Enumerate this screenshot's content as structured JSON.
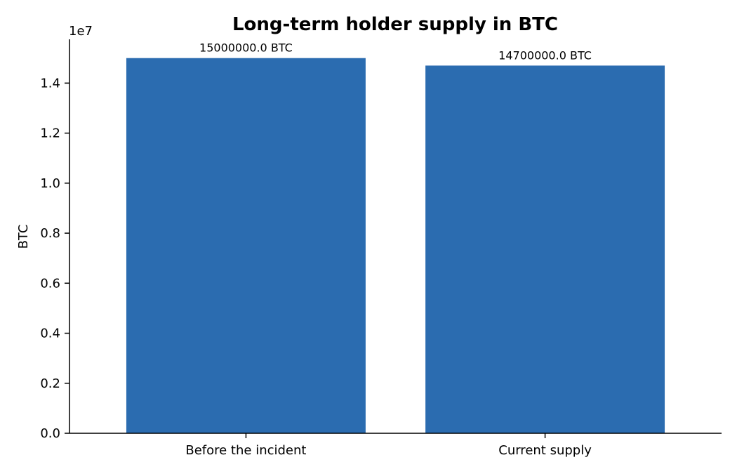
{
  "chart_data": {
    "type": "bar",
    "title": "Long-term holder supply in BTC",
    "xlabel": "",
    "ylabel": "BTC",
    "categories": [
      "Before the incident",
      "Current supply"
    ],
    "values": [
      15000000,
      14700000
    ],
    "data_labels": [
      "15000000.0 BTC",
      "14700000.0 BTC"
    ],
    "ylim": [
      0,
      15750000
    ],
    "y_ticks": [
      0,
      2000000,
      4000000,
      6000000,
      8000000,
      10000000,
      12000000,
      14000000
    ],
    "y_tick_labels": [
      "0.0",
      "0.2",
      "0.4",
      "0.6",
      "0.8",
      "1.0",
      "1.2",
      "1.4"
    ],
    "y_offset_label": "1e7",
    "bar_color": "#2b6cb0",
    "grid": false,
    "legend": "none"
  }
}
